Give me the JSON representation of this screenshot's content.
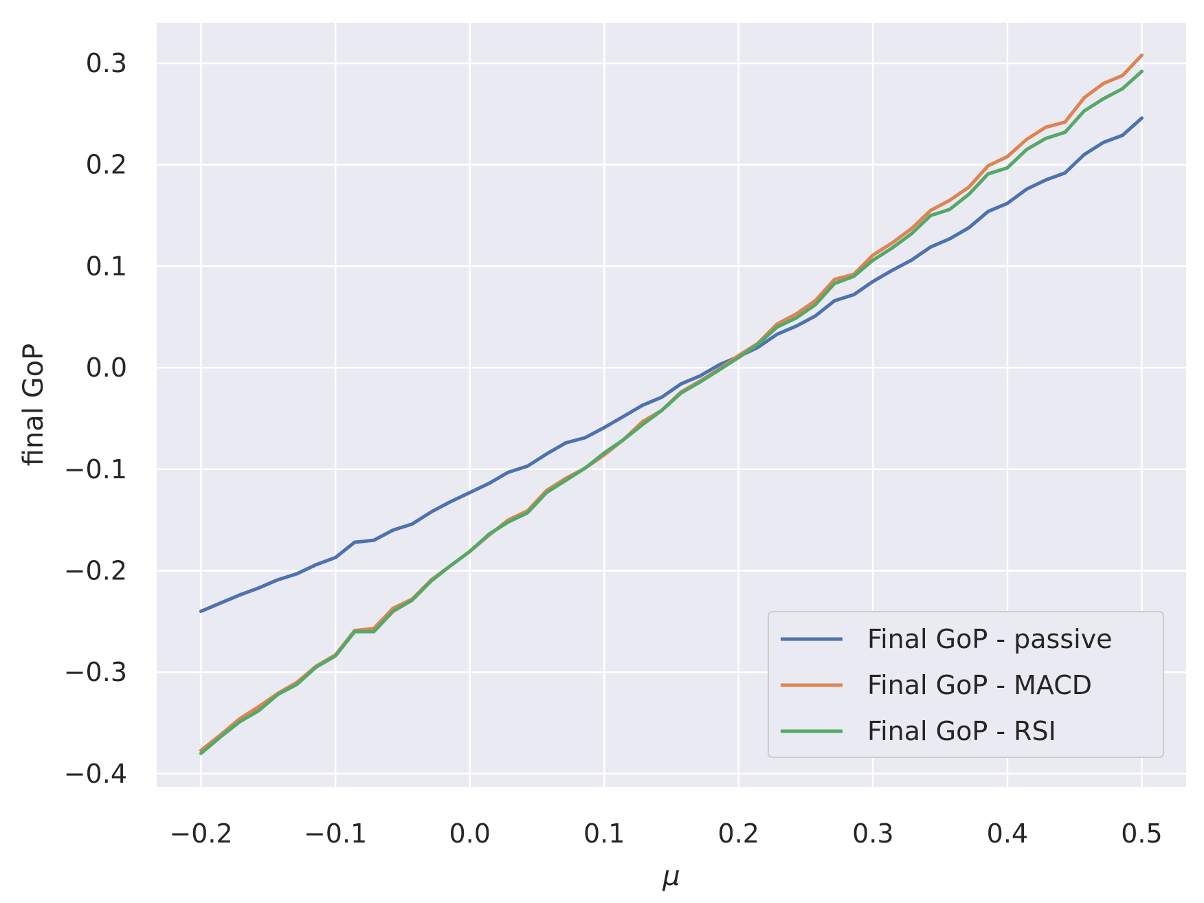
{
  "chart_data": {
    "type": "line",
    "title": "",
    "xlabel": "μ",
    "ylabel": "final GoP",
    "xlim": [
      -0.233,
      0.533
    ],
    "ylim": [
      -0.413,
      0.34
    ],
    "xticks": [
      -0.2,
      -0.1,
      0.0,
      0.1,
      0.2,
      0.3,
      0.4,
      0.5
    ],
    "xtick_labels": [
      "−0.2",
      "−0.1",
      "0.0",
      "0.1",
      "0.2",
      "0.3",
      "0.4",
      "0.5"
    ],
    "yticks": [
      -0.4,
      -0.3,
      -0.2,
      -0.1,
      0.0,
      0.1,
      0.2,
      0.3
    ],
    "ytick_labels": [
      "−0.4",
      "−0.3",
      "−0.2",
      "−0.1",
      "0.0",
      "0.1",
      "0.2",
      "0.3"
    ],
    "grid": true,
    "legend_position": "lower-right",
    "x": [
      -0.2,
      -0.1857,
      -0.1714,
      -0.1571,
      -0.1429,
      -0.1286,
      -0.1143,
      -0.1,
      -0.0857,
      -0.0714,
      -0.0571,
      -0.0429,
      -0.0286,
      -0.0143,
      0.0,
      0.0143,
      0.0286,
      0.0429,
      0.0571,
      0.0714,
      0.0857,
      0.1,
      0.1143,
      0.1286,
      0.1429,
      0.1571,
      0.1714,
      0.1857,
      0.2,
      0.2143,
      0.2286,
      0.2429,
      0.2571,
      0.2714,
      0.2857,
      0.3,
      0.3143,
      0.3286,
      0.3429,
      0.3571,
      0.3714,
      0.3857,
      0.4,
      0.4143,
      0.4286,
      0.4429,
      0.4571,
      0.4714,
      0.4857,
      0.5
    ],
    "series": [
      {
        "name": "Final GoP - passive",
        "color": "#4c72b0",
        "values": [
          -0.24,
          -0.232,
          -0.224,
          -0.217,
          -0.209,
          -0.203,
          -0.194,
          -0.187,
          -0.172,
          -0.17,
          -0.16,
          -0.154,
          -0.142,
          -0.132,
          -0.123,
          -0.114,
          -0.103,
          -0.097,
          -0.085,
          -0.074,
          -0.069,
          -0.059,
          -0.048,
          -0.037,
          -0.029,
          -0.016,
          -0.008,
          0.003,
          0.011,
          0.02,
          0.033,
          0.041,
          0.051,
          0.066,
          0.072,
          0.085,
          0.096,
          0.106,
          0.119,
          0.127,
          0.138,
          0.154,
          0.162,
          0.176,
          0.185,
          0.192,
          0.21,
          0.222,
          0.229,
          0.246
        ]
      },
      {
        "name": "Final GoP - MACD",
        "color": "#dd8452",
        "values": [
          -0.377,
          -0.362,
          -0.346,
          -0.334,
          -0.321,
          -0.31,
          -0.294,
          -0.283,
          -0.259,
          -0.257,
          -0.237,
          -0.228,
          -0.209,
          -0.195,
          -0.181,
          -0.165,
          -0.15,
          -0.141,
          -0.121,
          -0.109,
          -0.099,
          -0.086,
          -0.071,
          -0.053,
          -0.042,
          -0.024,
          -0.013,
          -0.001,
          0.012,
          0.024,
          0.043,
          0.053,
          0.066,
          0.087,
          0.092,
          0.111,
          0.123,
          0.137,
          0.155,
          0.165,
          0.178,
          0.199,
          0.208,
          0.225,
          0.237,
          0.242,
          0.266,
          0.28,
          0.288,
          0.308
        ]
      },
      {
        "name": "Final GoP - RSI",
        "color": "#55a868",
        "values": [
          -0.38,
          -0.364,
          -0.349,
          -0.338,
          -0.322,
          -0.312,
          -0.295,
          -0.284,
          -0.26,
          -0.26,
          -0.24,
          -0.229,
          -0.21,
          -0.195,
          -0.181,
          -0.164,
          -0.152,
          -0.143,
          -0.123,
          -0.111,
          -0.099,
          -0.084,
          -0.071,
          -0.056,
          -0.042,
          -0.025,
          -0.014,
          -0.002,
          0.01,
          0.023,
          0.04,
          0.049,
          0.062,
          0.083,
          0.09,
          0.106,
          0.118,
          0.132,
          0.15,
          0.156,
          0.171,
          0.191,
          0.197,
          0.215,
          0.226,
          0.232,
          0.253,
          0.265,
          0.275,
          0.292
        ]
      }
    ]
  }
}
